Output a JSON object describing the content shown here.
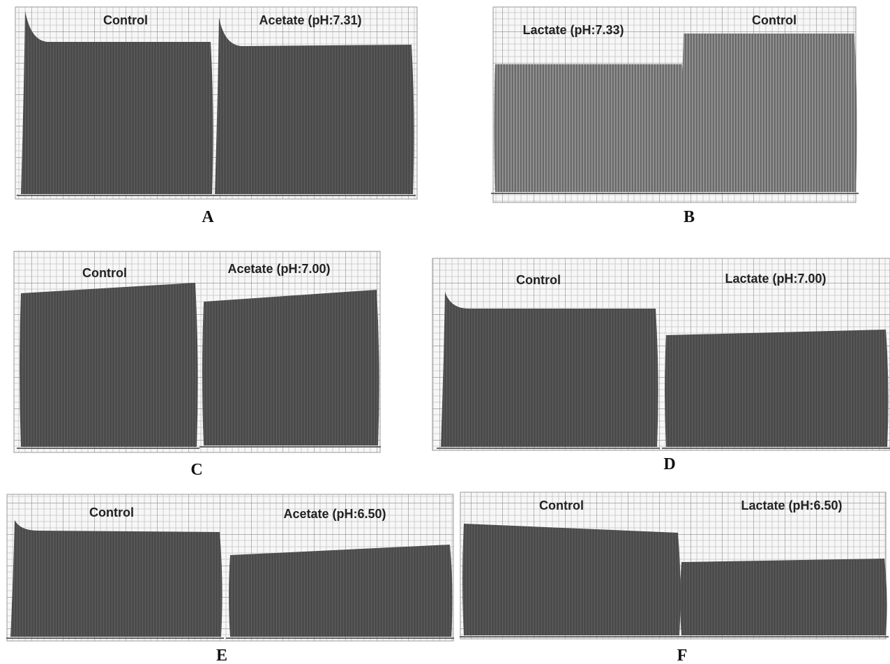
{
  "panels": [
    {
      "letter": "A",
      "segments": [
        "Control",
        "Acetate (pH:7.31)"
      ]
    },
    {
      "letter": "B",
      "segments": [
        "Lactate (pH:7.33)",
        "Control"
      ]
    },
    {
      "letter": "C",
      "segments": [
        "Control",
        "Acetate (pH:7.00)"
      ]
    },
    {
      "letter": "D",
      "segments": [
        "Control",
        "Lactate (pH:7.00)"
      ]
    },
    {
      "letter": "E",
      "segments": [
        "Control",
        "Acetate (pH:6.50)"
      ]
    },
    {
      "letter": "F",
      "segments": [
        "Control",
        "Lactate (pH:6.50)"
      ]
    }
  ]
}
